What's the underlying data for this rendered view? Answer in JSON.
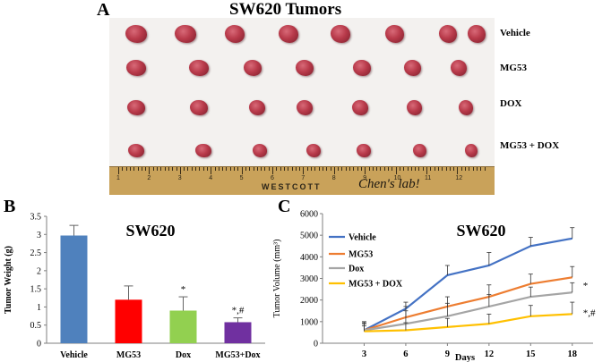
{
  "panel_a": {
    "letter": "A",
    "title": "SW620 Tumors",
    "rows": [
      {
        "label": "Vehicle",
        "count": 8
      },
      {
        "label": "MG53",
        "count": 7
      },
      {
        "label": "DOX",
        "count": 7
      },
      {
        "label": "MG53 + DOX",
        "count": 7
      }
    ],
    "ruler": {
      "brand": "WESTCOTT",
      "handwriting": "Chen's lab!",
      "numbers": [
        "1",
        "2",
        "3",
        "4",
        "5",
        "6",
        "7",
        "8",
        "9",
        "10",
        "11",
        "12"
      ]
    }
  },
  "panel_b": {
    "letter": "B"
  },
  "panel_c": {
    "letter": "C"
  },
  "colors": {
    "vehicle": "#4472c4",
    "mg53": "#ed7d31",
    "dox": "#a5a5a5",
    "combo": "#ffc000",
    "bar_vehicle": "#4f81bd",
    "bar_mg53": "#ff0000",
    "bar_dox": "#92d050",
    "bar_combo": "#7030a0",
    "tumor": "#b83a4a"
  },
  "chart_data": [
    {
      "type": "bar",
      "title": "SW620",
      "ylabel": "Tumor Weight (g)",
      "xlabel": "",
      "ylim": [
        0,
        3.5
      ],
      "yticks": [
        "0",
        "0.5",
        "1",
        "1.5",
        "2",
        "2.5",
        "3",
        "3.5"
      ],
      "categories": [
        "Vehicle",
        "MG53",
        "Dox",
        "MG53+Dox"
      ],
      "values": [
        2.97,
        1.2,
        0.9,
        0.58
      ],
      "errors": [
        0.28,
        0.38,
        0.38,
        0.12
      ],
      "annotations": [
        "",
        "",
        "*",
        "*,#"
      ]
    },
    {
      "type": "line",
      "title": "SW620",
      "ylabel": "Tumor Volume (mm³)",
      "xlabel": "Days",
      "x": [
        3,
        6,
        9,
        12,
        15,
        18
      ],
      "ylim": [
        0,
        6000
      ],
      "yticks": [
        "0",
        "1000",
        "2000",
        "3000",
        "4000",
        "5000",
        "6000"
      ],
      "series": [
        {
          "name": "Vehicle",
          "values": [
            600,
            1600,
            3150,
            3600,
            4500,
            4850
          ],
          "errors": [
            400,
            300,
            450,
            600,
            400,
            500
          ],
          "annotation": ""
        },
        {
          "name": "MG53",
          "values": [
            600,
            1200,
            1700,
            2150,
            2750,
            3050
          ],
          "errors": [
            350,
            500,
            450,
            550,
            450,
            500
          ],
          "annotation": ""
        },
        {
          "name": "Dox",
          "values": [
            600,
            900,
            1250,
            1700,
            2150,
            2350
          ],
          "errors": [
            300,
            600,
            600,
            550,
            450,
            450
          ],
          "annotation": "*"
        },
        {
          "name": "MG53 + DOX",
          "values": [
            550,
            600,
            750,
            900,
            1250,
            1350
          ],
          "errors": [
            250,
            350,
            400,
            450,
            500,
            550
          ],
          "annotation": "*,#"
        }
      ]
    }
  ]
}
